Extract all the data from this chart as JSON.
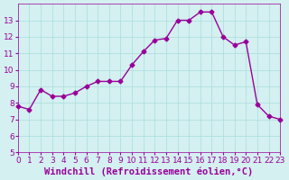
{
  "x": [
    0,
    1,
    2,
    3,
    4,
    5,
    6,
    7,
    8,
    9,
    10,
    11,
    12,
    13,
    14,
    15,
    16,
    17,
    18,
    19,
    20,
    21,
    22,
    23
  ],
  "y": [
    7.8,
    7.6,
    8.8,
    8.4,
    8.4,
    8.6,
    9.0,
    9.3,
    9.3,
    9.3,
    10.3,
    11.1,
    11.8,
    11.9,
    13.0,
    13.0,
    13.5,
    13.5,
    12.0,
    11.5,
    11.7,
    7.9,
    7.2,
    7.0
  ],
  "last_y": 5.5,
  "line_color": "#990099",
  "marker": "D",
  "markersize": 2.5,
  "linewidth": 1.0,
  "background_color": "#d4f0f0",
  "grid_color": "#aadddd",
  "xlabel": "Windchill (Refroidissement éolien,°C)",
  "xlabel_color": "#990099",
  "xlabel_fontsize": 7.5,
  "tick_color": "#990099",
  "tick_fontsize": 6.5,
  "ylim": [
    5,
    14
  ],
  "xlim": [
    0,
    23
  ],
  "yticks": [
    5,
    6,
    7,
    8,
    9,
    10,
    11,
    12,
    13
  ],
  "xticks": [
    0,
    1,
    2,
    3,
    4,
    5,
    6,
    7,
    8,
    9,
    10,
    11,
    12,
    13,
    14,
    15,
    16,
    17,
    18,
    19,
    20,
    21,
    22,
    23
  ]
}
